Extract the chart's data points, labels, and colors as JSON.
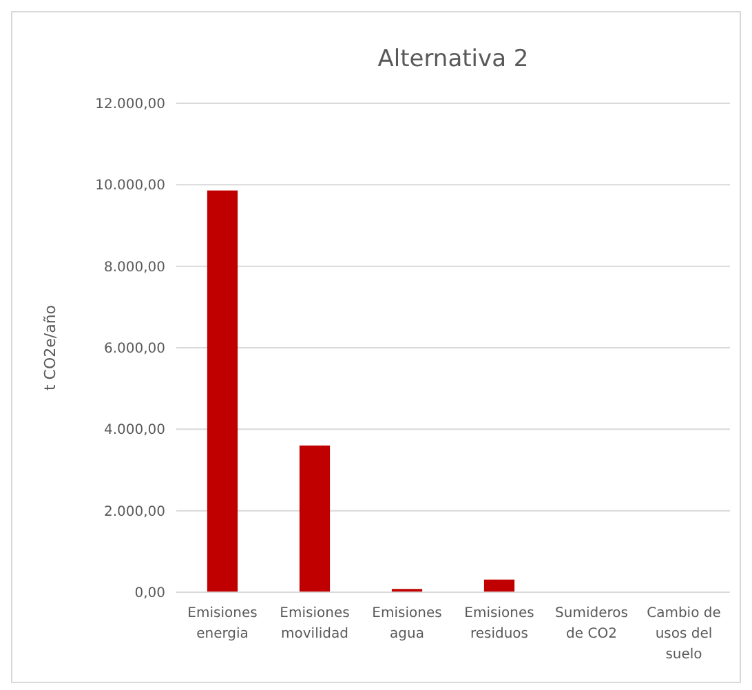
{
  "chart_data": {
    "type": "bar",
    "title": "Alternativa 2",
    "ylabel": "t CO2e/año",
    "categories": [
      "Emisiones energia",
      "Emisiones movilidad",
      "Emisiones agua",
      "Emisiones residuos",
      "Sumideros de CO2",
      "Cambio de usos del suelo"
    ],
    "values": [
      9860,
      3600,
      80,
      310,
      0,
      0
    ],
    "color": "#c00000",
    "ylim": [
      0,
      12000
    ],
    "yticks": [
      {
        "value": 0,
        "label": "0,00"
      },
      {
        "value": 2000,
        "label": "2.000,00"
      },
      {
        "value": 4000,
        "label": "4.000,00"
      },
      {
        "value": 6000,
        "label": "6.000,00"
      },
      {
        "value": 8000,
        "label": "8.000,00"
      },
      {
        "value": 10000,
        "label": "10.000,00"
      },
      {
        "value": 12000,
        "label": "12.000,00"
      }
    ],
    "grid": "y"
  }
}
